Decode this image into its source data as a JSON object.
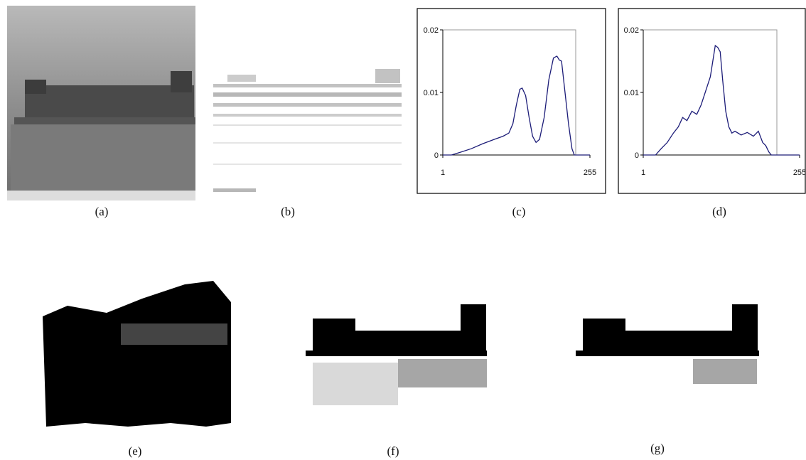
{
  "captions": [
    "(a)",
    "(b)",
    "(c)",
    "(d)",
    "(e)",
    "(f)",
    "(g)"
  ],
  "chart_data": [
    {
      "type": "line",
      "xlim": [
        1,
        255
      ],
      "xticks": [
        1,
        255
      ],
      "ylim": [
        0,
        0.02
      ],
      "yticks": [
        0,
        0.01,
        0.02
      ],
      "x": [
        1,
        16,
        30,
        50,
        70,
        90,
        105,
        115,
        122,
        128,
        134,
        138,
        144,
        150,
        156,
        162,
        168,
        176,
        184,
        192,
        198,
        202,
        206,
        212,
        218,
        224,
        228,
        240,
        255
      ],
      "series": [
        {
          "color": "#1c1c78",
          "values": [
            0,
            0,
            0.0004,
            0.001,
            0.0018,
            0.0025,
            0.003,
            0.0035,
            0.005,
            0.008,
            0.0105,
            0.0107,
            0.0095,
            0.006,
            0.003,
            0.002,
            0.0025,
            0.006,
            0.012,
            0.0155,
            0.0158,
            0.0152,
            0.015,
            0.01,
            0.005,
            0.001,
            0,
            0,
            0
          ]
        }
      ]
    },
    {
      "type": "line",
      "xlim": [
        1,
        255
      ],
      "xticks": [
        1,
        255
      ],
      "ylim": [
        0,
        0.02
      ],
      "yticks": [
        0,
        0.01,
        0.02
      ],
      "x": [
        1,
        21,
        30,
        40,
        50,
        58,
        65,
        72,
        80,
        88,
        95,
        100,
        105,
        110,
        114,
        118,
        122,
        126,
        130,
        135,
        140,
        145,
        150,
        160,
        170,
        180,
        188,
        195,
        200,
        205,
        209,
        230,
        255
      ],
      "series": [
        {
          "color": "#1c1c78",
          "values": [
            0,
            0,
            0.001,
            0.002,
            0.0035,
            0.0045,
            0.006,
            0.0055,
            0.007,
            0.0065,
            0.008,
            0.0095,
            0.011,
            0.0125,
            0.015,
            0.0175,
            0.0172,
            0.0165,
            0.012,
            0.007,
            0.0045,
            0.0035,
            0.0038,
            0.0032,
            0.0036,
            0.003,
            0.0038,
            0.002,
            0.0015,
            0.0005,
            0,
            0,
            0
          ]
        }
      ]
    }
  ]
}
